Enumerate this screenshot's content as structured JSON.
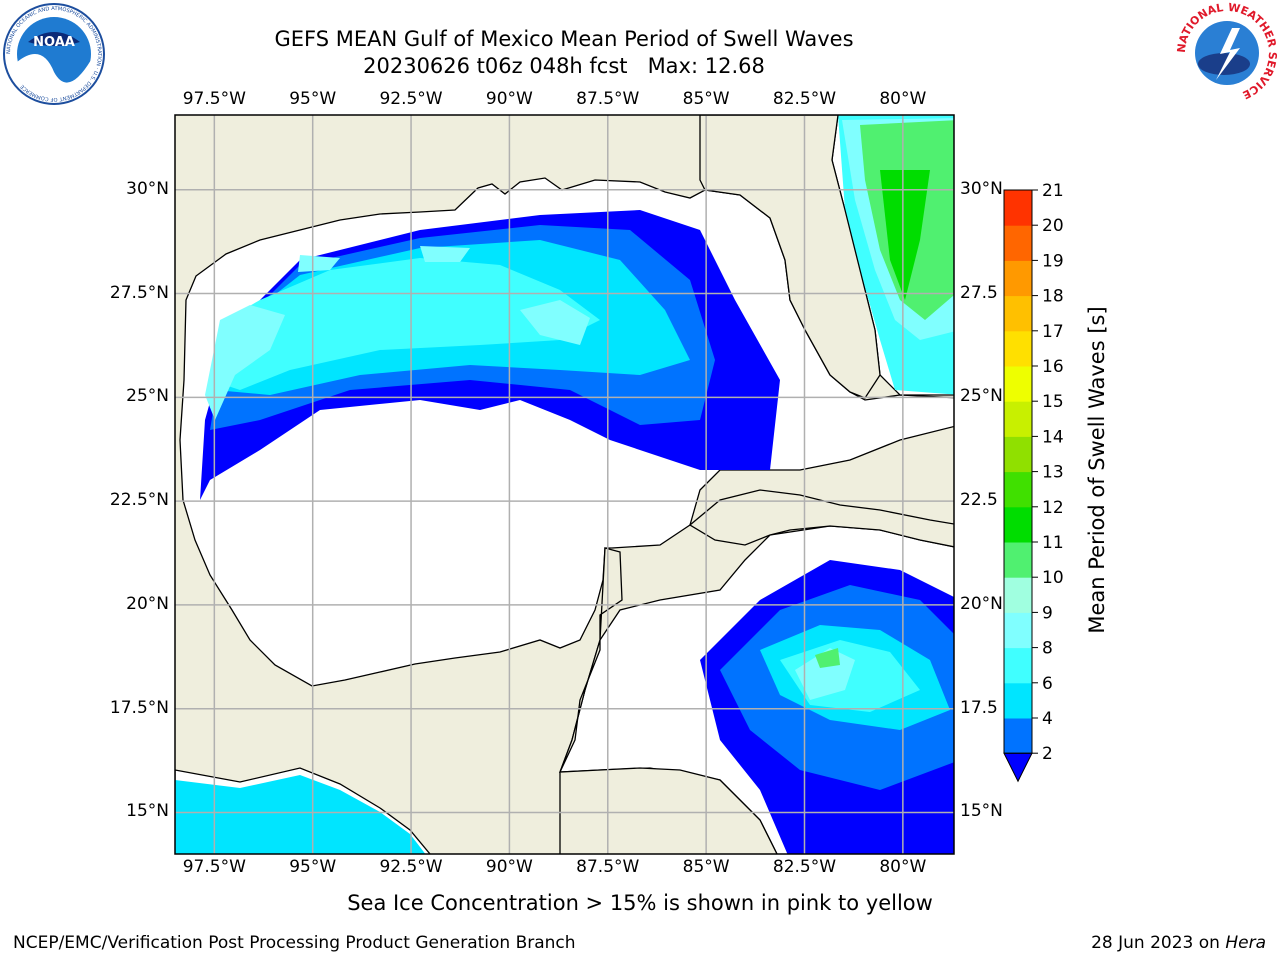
{
  "header": {
    "title_line1": "GEFS MEAN Gulf of Mexico Mean Period of Swell Waves",
    "title_line2_run": "20230626 t06z 048h fcst",
    "title_line2_max": "Max: 12.68"
  },
  "logos": {
    "left_text": "NOAA",
    "left_ring_text": "NATIONAL OCEANIC AND ATMOSPHERIC ADMINISTRATION · U.S. DEPARTMENT OF COMMERCE",
    "right_ring_text": "NATIONAL WEATHER SERVICE"
  },
  "map": {
    "lon_labels": [
      "97.5°W",
      "95°W",
      "92.5°W",
      "90°W",
      "87.5°W",
      "85°W",
      "82.5°W",
      "80°W"
    ],
    "lat_labels_left": [
      "30°N",
      "27.5°N",
      "25°N",
      "22.5°N",
      "20°N",
      "17.5°N",
      "15°N"
    ],
    "lat_labels_right": [
      "30°N",
      "27.5",
      "25°N",
      "22.5",
      "20°N",
      "17.5",
      "15°N"
    ],
    "colors": {
      "land": "#efeedd",
      "ocean_low": "#ffffff",
      "grid": "#b0b0b0"
    }
  },
  "colorbar": {
    "title": "Mean Period of Swell Waves [s]",
    "tick_labels": [
      "2",
      "4",
      "6",
      "8",
      "9",
      "10",
      "11",
      "12",
      "13",
      "14",
      "15",
      "16",
      "17",
      "18",
      "19",
      "20",
      "21"
    ],
    "colors": [
      "#0073ff",
      "#00e5ff",
      "#40ffff",
      "#80ffff",
      "#a0ffe0",
      "#50f070",
      "#00dd00",
      "#40e000",
      "#90e000",
      "#c8f000",
      "#eeff00",
      "#ffe000",
      "#ffc000",
      "#ff9900",
      "#ff6600",
      "#ff3300",
      "#ff0000"
    ],
    "extend_color": "#0000ff"
  },
  "chart_data": {
    "type": "heatmap",
    "title": "GEFS MEAN Gulf of Mexico Mean Period of Swell Waves",
    "subtitle": "20230626 t06z 048h fcst   Max: 12.68",
    "variable": "Mean Period of Swell Waves [s]",
    "max_value": 12.68,
    "lon_range": [
      -98.5,
      -78.7
    ],
    "lat_range": [
      14.0,
      31.8
    ],
    "levels": [
      2,
      4,
      6,
      8,
      9,
      10,
      11,
      12,
      13,
      14,
      15,
      16,
      17,
      18,
      19,
      20,
      21
    ],
    "legend": "right"
  },
  "footer": {
    "note": "Sea Ice Concentration > 15% is shown in pink to yellow",
    "left": "NCEP/EMC/Verification Post Processing Product Generation Branch",
    "right_date": "28 Jun 2023 on ",
    "right_machine": "Hera"
  }
}
